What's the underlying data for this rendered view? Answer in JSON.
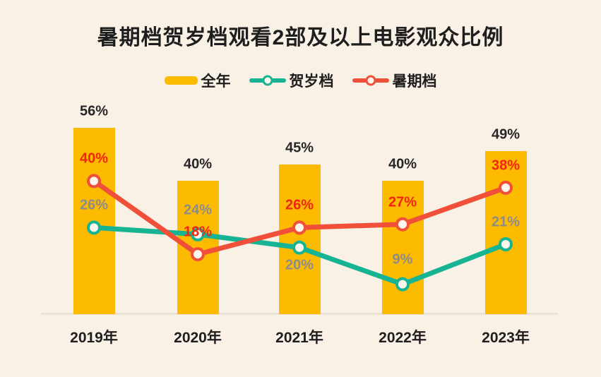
{
  "title": "暑期档贺岁档观看2部及以上电影观众比例",
  "colors": {
    "background": "#FAF1E6",
    "bar": "#FDBB00",
    "hesuidang_line": "#17B493",
    "shuqidang_line": "#F0503A",
    "bar_label": "#262626",
    "shuqidang_label": "#F2250F",
    "hesuidang_label": "#8C8C8C",
    "axis_line": "#EAE2D7",
    "marker_fill": "#FDF6EC"
  },
  "legend": [
    {
      "label": "全年",
      "swatch": "bar",
      "color": "#FDBB00"
    },
    {
      "label": "贺岁档",
      "swatch": "line",
      "color": "#17B493"
    },
    {
      "label": "暑期档",
      "swatch": "line",
      "color": "#F0503A"
    }
  ],
  "chart_data": {
    "type": "bar",
    "title": "暑期档贺岁档观看2部及以上电影观众比例",
    "categories": [
      "2019年",
      "2020年",
      "2021年",
      "2022年",
      "2023年"
    ],
    "series": [
      {
        "name": "全年",
        "type": "bar",
        "unit": "%",
        "values": [
          56,
          40,
          45,
          40,
          49
        ]
      },
      {
        "name": "贺岁档",
        "type": "line",
        "unit": "%",
        "values": [
          26,
          24,
          20,
          9,
          21
        ]
      },
      {
        "name": "暑期档",
        "type": "line",
        "unit": "%",
        "values": [
          40,
          18,
          26,
          27,
          38
        ]
      }
    ],
    "xlabel": "",
    "ylabel": "",
    "ylim": [
      0,
      60
    ],
    "grid": false,
    "legend_position": "top",
    "data_labels": true
  }
}
